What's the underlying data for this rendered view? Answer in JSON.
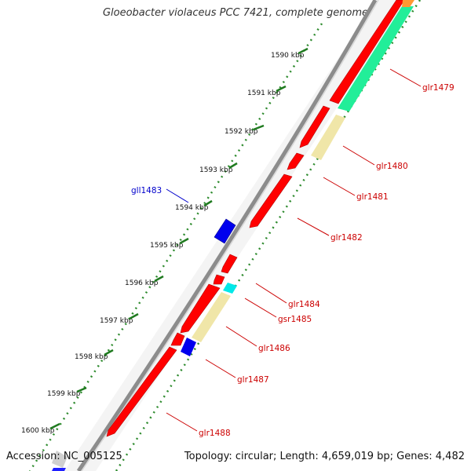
{
  "title": "Gloeobacter violaceus PCC 7421, complete genome",
  "footer": {
    "accession": "Accession: NC_005125",
    "summary": "Topology: circular; Length: 4,659,019 bp; Genes: 4,482"
  },
  "ruler": [
    {
      "label": "1590 kbp"
    },
    {
      "label": "1591 kbp"
    },
    {
      "label": "1592 kbp"
    },
    {
      "label": "1593 kbp"
    },
    {
      "label": "1594 kbp"
    },
    {
      "label": "1595 kbp"
    },
    {
      "label": "1596 kbp"
    },
    {
      "label": "1597 kbp"
    },
    {
      "label": "1598 kbp"
    },
    {
      "label": "1599 kbp"
    },
    {
      "label": "1600 kbp"
    }
  ],
  "genes": [
    {
      "name": "glr1479",
      "strand": "+",
      "color": "#ff0000"
    },
    {
      "name": "glr1480",
      "strand": "+",
      "color": "#ff0000"
    },
    {
      "name": "glr1481",
      "strand": "+",
      "color": "#ff0000"
    },
    {
      "name": "glr1482",
      "strand": "+",
      "color": "#ff0000"
    },
    {
      "name": "gll1483",
      "strand": "-",
      "color": "#0000ee"
    },
    {
      "name": "glr1484",
      "strand": "+",
      "color": "#ff0000"
    },
    {
      "name": "gsr1485",
      "strand": "+",
      "color": "#ff0000"
    },
    {
      "name": "glr1486",
      "strand": "+",
      "color": "#ff0000"
    },
    {
      "name": "glr1487",
      "strand": "+",
      "color": "#ff0000"
    },
    {
      "name": "glr1488",
      "strand": "+",
      "color": "#ff0000"
    }
  ],
  "colors": {
    "cds_forward": "#ff0000",
    "cds_reverse": "#0000ee",
    "backbone": "#888888",
    "ruler_ticks": "#228b22",
    "label_forward": "#cc0000",
    "label_reverse": "#0000cc"
  }
}
